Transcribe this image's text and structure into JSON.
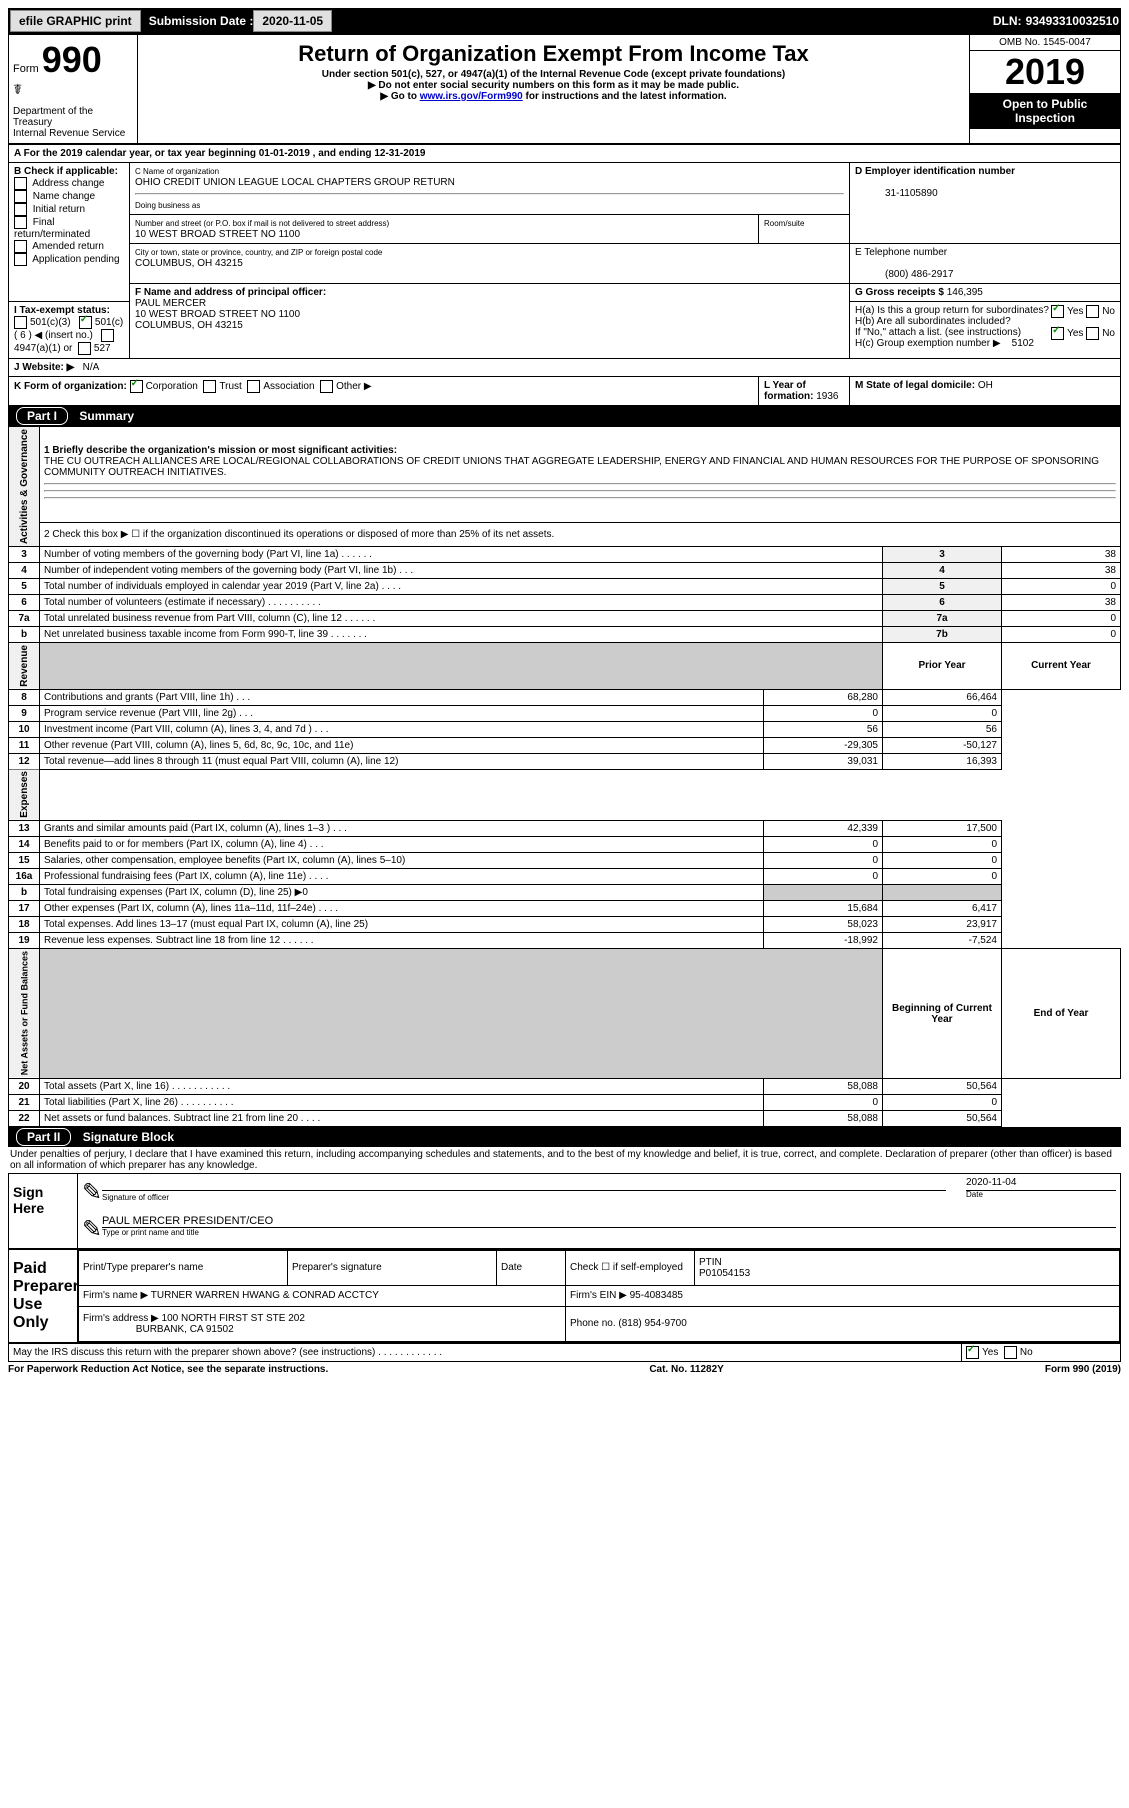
{
  "topbar": {
    "efile": "efile GRAPHIC print",
    "subdate_label": "Submission Date :",
    "subdate": "2020-11-05",
    "dln_label": "DLN:",
    "dln": "93493310032510"
  },
  "header": {
    "form_word": "Form",
    "form_num": "990",
    "title": "Return of Organization Exempt From Income Tax",
    "subtitle": "Under section 501(c), 527, or 4947(a)(1) of the Internal Revenue Code (except private foundations)",
    "note1": "▶ Do not enter social security numbers on this form as it may be made public.",
    "note2_pre": "▶ Go to ",
    "note2_link": "www.irs.gov/Form990",
    "note2_post": " for instructions and the latest information.",
    "omb": "OMB No. 1545-0047",
    "year": "2019",
    "inspect1": "Open to Public",
    "inspect2": "Inspection",
    "dept1": "Department of the Treasury",
    "dept2": "Internal Revenue Service"
  },
  "section_a": {
    "line": "A For the 2019 calendar year, or tax year beginning 01-01-2019   , and ending 12-31-2019",
    "b_label": "B Check if applicable:",
    "b_opts": [
      "Address change",
      "Name change",
      "Initial return",
      "Final return/terminated",
      "Amended return",
      "Application pending"
    ],
    "c_label": "C Name of organization",
    "c_name": "OHIO CREDIT UNION LEAGUE LOCAL CHAPTERS GROUP RETURN",
    "dba_label": "Doing business as",
    "addr_label": "Number and street (or P.O. box if mail is not delivered to street address)",
    "room_label": "Room/suite",
    "addr": "10 WEST BROAD STREET NO 1100",
    "city_label": "City or town, state or province, country, and ZIP or foreign postal code",
    "city": "COLUMBUS, OH  43215",
    "d_label": "D Employer identification number",
    "d_ein": "31-1105890",
    "e_label": "E Telephone number",
    "e_phone": "(800) 486-2917",
    "g_label": "G Gross receipts $",
    "g_amount": "146,395",
    "f_label": "F  Name and address of principal officer:",
    "f_name": "PAUL MERCER",
    "f_addr1": "10 WEST BROAD STREET NO 1100",
    "f_addr2": "COLUMBUS, OH  43215",
    "ha": "H(a)  Is this a group return for subordinates?",
    "hb": "H(b)  Are all subordinates included?",
    "hb_note": "If \"No,\" attach a list. (see instructions)",
    "hc": "H(c)  Group exemption number ▶",
    "hc_num": "5102",
    "yes": "Yes",
    "no": "No",
    "i_label": "I   Tax-exempt status:",
    "i_501c3": "501(c)(3)",
    "i_501c": "501(c) ( 6 ) ◀ (insert no.)",
    "i_4947": "4947(a)(1) or",
    "i_527": "527",
    "j_label": "J   Website: ▶",
    "j_val": "N/A",
    "k_label": "K Form of organization:",
    "k_corp": "Corporation",
    "k_trust": "Trust",
    "k_assoc": "Association",
    "k_other": "Other ▶",
    "l_label": "L Year of formation:",
    "l_val": "1936",
    "m_label": "M State of legal domicile:",
    "m_val": "OH"
  },
  "part1": {
    "title": "Part I",
    "subtitle": "Summary",
    "line1_label": "1  Briefly describe the organization's mission or most significant activities:",
    "line1_text": "THE CU OUTREACH ALLIANCES ARE LOCAL/REGIONAL COLLABORATIONS OF CREDIT UNIONS THAT AGGREGATE LEADERSHIP, ENERGY AND FINANCIAL AND HUMAN RESOURCES FOR THE PURPOSE OF SPONSORING COMMUNITY OUTREACH INITIATIVES.",
    "line2": "2   Check this box ▶ ☐ if the organization discontinued its operations or disposed of more than 25% of its net assets.",
    "prior_year": "Prior Year",
    "current_year": "Current Year",
    "boy": "Beginning of Current Year",
    "eoy": "End of Year",
    "vert_labels": {
      "activities": "Activities & Governance",
      "revenue": "Revenue",
      "expenses": "Expenses",
      "net": "Net Assets or Fund Balances"
    },
    "rows_gov": [
      {
        "n": "3",
        "t": "Number of voting members of the governing body (Part VI, line 1a)   .    .    .    .    .    .",
        "box": "3",
        "v": "38"
      },
      {
        "n": "4",
        "t": "Number of independent voting members of the governing body (Part VI, line 1b)   .    .    .",
        "box": "4",
        "v": "38"
      },
      {
        "n": "5",
        "t": "Total number of individuals employed in calendar year 2019 (Part V, line 2a)   .    .    .    .",
        "box": "5",
        "v": "0"
      },
      {
        "n": "6",
        "t": "Total number of volunteers (estimate if necessary)    .    .    .    .    .    .    .    .    .    .",
        "box": "6",
        "v": "38"
      },
      {
        "n": "7a",
        "t": "Total unrelated business revenue from Part VIII, column (C), line 12   .    .    .    .    .    .",
        "box": "7a",
        "v": "0"
      },
      {
        "n": "b",
        "t": "Net unrelated business taxable income from Form 990-T, line 39    .    .    .    .    .    .    .",
        "box": "7b",
        "v": "0"
      }
    ],
    "rows_rev": [
      {
        "n": "8",
        "t": "Contributions and grants (Part VIII, line 1h)    .    .    .",
        "py": "68,280",
        "cy": "66,464"
      },
      {
        "n": "9",
        "t": "Program service revenue (Part VIII, line 2g)    .    .    .",
        "py": "0",
        "cy": "0"
      },
      {
        "n": "10",
        "t": "Investment income (Part VIII, column (A), lines 3, 4, and 7d )    .    .    .",
        "py": "56",
        "cy": "56"
      },
      {
        "n": "11",
        "t": "Other revenue (Part VIII, column (A), lines 5, 6d, 8c, 9c, 10c, and 11e)",
        "py": "-29,305",
        "cy": "-50,127"
      },
      {
        "n": "12",
        "t": "Total revenue—add lines 8 through 11 (must equal Part VIII, column (A), line 12)",
        "py": "39,031",
        "cy": "16,393"
      }
    ],
    "rows_exp": [
      {
        "n": "13",
        "t": "Grants and similar amounts paid (Part IX, column (A), lines 1–3 )   .    .    .",
        "py": "42,339",
        "cy": "17,500"
      },
      {
        "n": "14",
        "t": "Benefits paid to or for members (Part IX, column (A), line 4)    .    .    .",
        "py": "0",
        "cy": "0"
      },
      {
        "n": "15",
        "t": "Salaries, other compensation, employee benefits (Part IX, column (A), lines 5–10)",
        "py": "0",
        "cy": "0"
      },
      {
        "n": "16a",
        "t": "Professional fundraising fees (Part IX, column (A), line 11e)    .    .    .    .",
        "py": "0",
        "cy": "0"
      },
      {
        "n": "b",
        "t": "Total fundraising expenses (Part IX, column (D), line 25) ▶0",
        "py": "",
        "cy": "",
        "shaded": true
      },
      {
        "n": "17",
        "t": "Other expenses (Part IX, column (A), lines 11a–11d, 11f–24e)    .    .    .    .",
        "py": "15,684",
        "cy": "6,417"
      },
      {
        "n": "18",
        "t": "Total expenses. Add lines 13–17 (must equal Part IX, column (A), line 25)",
        "py": "58,023",
        "cy": "23,917"
      },
      {
        "n": "19",
        "t": "Revenue less expenses. Subtract line 18 from line 12   .    .    .    .    .    .",
        "py": "-18,992",
        "cy": "-7,524"
      }
    ],
    "rows_net": [
      {
        "n": "20",
        "t": "Total assets (Part X, line 16)   .    .    .    .    .    .    .    .    .    .    .",
        "py": "58,088",
        "cy": "50,564"
      },
      {
        "n": "21",
        "t": "Total liabilities (Part X, line 26)   .    .    .    .    .    .    .    .    .    .",
        "py": "0",
        "cy": "0"
      },
      {
        "n": "22",
        "t": "Net assets or fund balances. Subtract line 21 from line 20    .    .    .    .",
        "py": "58,088",
        "cy": "50,564"
      }
    ]
  },
  "part2": {
    "title": "Part II",
    "subtitle": "Signature Block",
    "penalty": "Under penalties of perjury, I declare that I have examined this return, including accompanying schedules and statements, and to the best of my knowledge and belief, it is true, correct, and complete. Declaration of preparer (other than officer) is based on all information of which preparer has any knowledge.",
    "sign_here": "Sign Here",
    "sig_officer": "Signature of officer",
    "sig_date": "2020-11-04",
    "date_label": "Date",
    "sig_name": "PAUL MERCER  PRESIDENT/CEO",
    "sig_name_label": "Type or print name and title",
    "paid": "Paid Preparer Use Only",
    "prep_name_label": "Print/Type preparer's name",
    "prep_sig_label": "Preparer's signature",
    "prep_date_label": "Date",
    "check_if": "Check ☐ if self-employed",
    "ptin_label": "PTIN",
    "ptin": "P01054153",
    "firm_label": "Firm's name    ▶",
    "firm": "TURNER WARREN HWANG & CONRAD ACCTCY",
    "firm_ein_label": "Firm's EIN ▶",
    "firm_ein": "95-4083485",
    "firm_addr_label": "Firm's address ▶",
    "firm_addr1": "100 NORTH FIRST ST STE 202",
    "firm_addr2": "BURBANK, CA  91502",
    "phone_label": "Phone no.",
    "phone": "(818) 954-9700",
    "discuss": "May the IRS discuss this return with the preparer shown above? (see instructions)    .    .    .    .    .    .    .    .    .    .    .    ."
  },
  "footer": {
    "left": "For Paperwork Reduction Act Notice, see the separate instructions.",
    "mid": "Cat. No. 11282Y",
    "right": "Form 990 (2019)"
  }
}
